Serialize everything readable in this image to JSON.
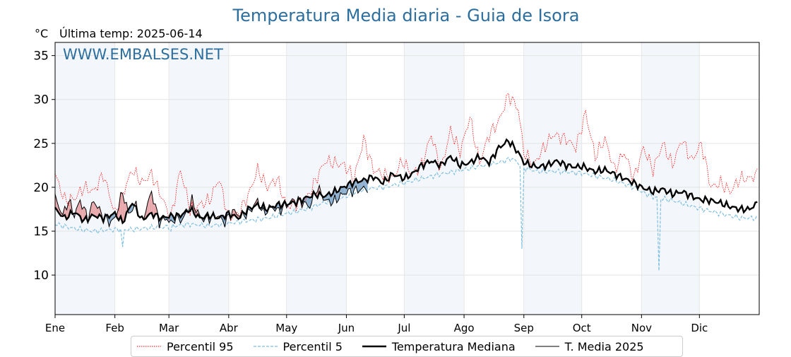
{
  "chart_data": {
    "type": "line",
    "title": "Temperatura Media diaria - Guia de Isora",
    "unit_label": "°C",
    "last_temp_label": "Última temp: 2025-06-14",
    "watermark": "WWW.EMBALSES.NET",
    "ylim": [
      5.5,
      36.5
    ],
    "yticks": [
      10,
      15,
      20,
      25,
      30,
      35
    ],
    "x_months": [
      "Ene",
      "Feb",
      "Mar",
      "Abr",
      "May",
      "Jun",
      "Jul",
      "Ago",
      "Sep",
      "Oct",
      "Nov",
      "Dic"
    ],
    "month_start_days": [
      0,
      31,
      59,
      90,
      120,
      151,
      181,
      212,
      243,
      273,
      304,
      334
    ],
    "grid": true,
    "legend_position": "bottom",
    "series": [
      {
        "name": "Percentil 95",
        "color": "#ff0000",
        "style": "dotted",
        "keypoints": [
          [
            0,
            21.5
          ],
          [
            5,
            18.5
          ],
          [
            10,
            18.7
          ],
          [
            15,
            20
          ],
          [
            20,
            19.5
          ],
          [
            25,
            21.5
          ],
          [
            31,
            17
          ],
          [
            40,
            22
          ],
          [
            45,
            20.5
          ],
          [
            50,
            21.5
          ],
          [
            60,
            16.5
          ],
          [
            65,
            22
          ],
          [
            70,
            17.5
          ],
          [
            80,
            18.5
          ],
          [
            85,
            21
          ],
          [
            90,
            16.5
          ],
          [
            95,
            17
          ],
          [
            100,
            19
          ],
          [
            105,
            22
          ],
          [
            110,
            20
          ],
          [
            115,
            21
          ],
          [
            120,
            17.8
          ],
          [
            130,
            18.5
          ],
          [
            140,
            23
          ],
          [
            150,
            22.5
          ],
          [
            155,
            21
          ],
          [
            160,
            25.5
          ],
          [
            165,
            22
          ],
          [
            175,
            21
          ],
          [
            180,
            23
          ],
          [
            185,
            21.5
          ],
          [
            190,
            22.5
          ],
          [
            195,
            26
          ],
          [
            200,
            22
          ],
          [
            205,
            26.5
          ],
          [
            210,
            24
          ],
          [
            215,
            28
          ],
          [
            220,
            22.8
          ],
          [
            225,
            26
          ],
          [
            230,
            27.5
          ],
          [
            235,
            30.5
          ],
          [
            240,
            29
          ],
          [
            243,
            24
          ],
          [
            248,
            22.5
          ],
          [
            252,
            24
          ],
          [
            258,
            26
          ],
          [
            265,
            25.5
          ],
          [
            270,
            24.5
          ],
          [
            275,
            28.5
          ],
          [
            280,
            23.5
          ],
          [
            285,
            25.5
          ],
          [
            290,
            22
          ],
          [
            295,
            24
          ],
          [
            300,
            21
          ],
          [
            305,
            24.5
          ],
          [
            310,
            22
          ],
          [
            315,
            25
          ],
          [
            320,
            22.5
          ],
          [
            325,
            25.5
          ],
          [
            330,
            23
          ],
          [
            335,
            25
          ],
          [
            340,
            20
          ],
          [
            345,
            20.5
          ],
          [
            350,
            19.5
          ],
          [
            355,
            21
          ],
          [
            360,
            21
          ],
          [
            364,
            21.5
          ]
        ],
        "noise": 0.9
      },
      {
        "name": "Percentil 5",
        "color": "#5aa9cf",
        "style": "dashed",
        "keypoints": [
          [
            0,
            15.8
          ],
          [
            10,
            15.3
          ],
          [
            20,
            15
          ],
          [
            31,
            15.2
          ],
          [
            40,
            15.2
          ],
          [
            50,
            15.4
          ],
          [
            59,
            15.5
          ],
          [
            70,
            15.8
          ],
          [
            80,
            15.6
          ],
          [
            90,
            15.9
          ],
          [
            100,
            16.2
          ],
          [
            110,
            16.5
          ],
          [
            120,
            17
          ],
          [
            130,
            17.5
          ],
          [
            140,
            18.3
          ],
          [
            151,
            19
          ],
          [
            160,
            19.8
          ],
          [
            170,
            20
          ],
          [
            181,
            20.5
          ],
          [
            190,
            21
          ],
          [
            200,
            21.5
          ],
          [
            212,
            22
          ],
          [
            220,
            22.4
          ],
          [
            230,
            22.8
          ],
          [
            237,
            23.3
          ],
          [
            243,
            22.2
          ],
          [
            250,
            21.8
          ],
          [
            260,
            21.8
          ],
          [
            273,
            21.6
          ],
          [
            280,
            21.3
          ],
          [
            290,
            20.8
          ],
          [
            300,
            20
          ],
          [
            304,
            19.5
          ],
          [
            310,
            18.9
          ],
          [
            320,
            18.5
          ],
          [
            334,
            17.6
          ],
          [
            345,
            17
          ],
          [
            355,
            16.5
          ],
          [
            364,
            16.5
          ]
        ],
        "noise": 0.35,
        "spikes": [
          [
            242,
            13.0
          ],
          [
            313,
            10.5
          ],
          [
            60,
            15.0
          ],
          [
            35,
            13.2
          ]
        ]
      },
      {
        "name": "Temperatura Mediana",
        "color": "#000000",
        "style": "solid-thick",
        "keypoints": [
          [
            0,
            17.5
          ],
          [
            5,
            16.5
          ],
          [
            10,
            17.2
          ],
          [
            15,
            16.2
          ],
          [
            20,
            16.8
          ],
          [
            25,
            16.5
          ],
          [
            31,
            17
          ],
          [
            35,
            16
          ],
          [
            40,
            18.3
          ],
          [
            45,
            16.3
          ],
          [
            50,
            17
          ],
          [
            55,
            16.5
          ],
          [
            59,
            16.7
          ],
          [
            65,
            16.8
          ],
          [
            70,
            17.5
          ],
          [
            75,
            16.5
          ],
          [
            80,
            16.8
          ],
          [
            85,
            16.5
          ],
          [
            90,
            17
          ],
          [
            95,
            16.5
          ],
          [
            100,
            17.5
          ],
          [
            105,
            18
          ],
          [
            110,
            17.5
          ],
          [
            115,
            18
          ],
          [
            120,
            18.1
          ],
          [
            125,
            18.3
          ],
          [
            130,
            18.8
          ],
          [
            135,
            19.2
          ],
          [
            140,
            19
          ],
          [
            145,
            19.5
          ],
          [
            151,
            20.2
          ],
          [
            155,
            20.6
          ],
          [
            160,
            20.8
          ],
          [
            165,
            21.2
          ],
          [
            170,
            20.5
          ],
          [
            175,
            21.5
          ],
          [
            181,
            21
          ],
          [
            185,
            21.5
          ],
          [
            190,
            22.5
          ],
          [
            195,
            23
          ],
          [
            200,
            22.5
          ],
          [
            205,
            23.5
          ],
          [
            210,
            22.5
          ],
          [
            215,
            22.8
          ],
          [
            220,
            23.5
          ],
          [
            225,
            22.8
          ],
          [
            230,
            24.5
          ],
          [
            235,
            25.3
          ],
          [
            240,
            24
          ],
          [
            243,
            22.8
          ],
          [
            250,
            22.3
          ],
          [
            255,
            22.5
          ],
          [
            260,
            23
          ],
          [
            265,
            22.5
          ],
          [
            270,
            22.3
          ],
          [
            273,
            22.4
          ],
          [
            280,
            21.8
          ],
          [
            285,
            22
          ],
          [
            290,
            21.5
          ],
          [
            295,
            21
          ],
          [
            300,
            20.5
          ],
          [
            304,
            20
          ],
          [
            310,
            19.5
          ],
          [
            315,
            19.8
          ],
          [
            320,
            19.2
          ],
          [
            325,
            19.5
          ],
          [
            330,
            19
          ],
          [
            334,
            18.6
          ],
          [
            340,
            18.5
          ],
          [
            345,
            18.2
          ],
          [
            350,
            17.8
          ],
          [
            355,
            17.5
          ],
          [
            360,
            17.5
          ],
          [
            364,
            18.2
          ]
        ],
        "noise": 0.45
      },
      {
        "name": "T. Media 2025",
        "color": "#000000",
        "style": "solid-thin",
        "keypoints": [
          [
            0,
            18.8
          ],
          [
            4,
            16.8
          ],
          [
            7,
            18.5
          ],
          [
            10,
            16.8
          ],
          [
            13,
            18.5
          ],
          [
            17,
            16.5
          ],
          [
            20,
            18.5
          ],
          [
            24,
            17
          ],
          [
            28,
            16
          ],
          [
            31,
            16.4
          ],
          [
            35,
            19.5
          ],
          [
            38,
            17
          ],
          [
            42,
            18
          ],
          [
            45,
            16
          ],
          [
            50,
            19.5
          ],
          [
            54,
            16
          ],
          [
            58,
            16.5
          ],
          [
            60,
            15.8
          ],
          [
            62,
            16.5
          ],
          [
            66,
            16.3
          ],
          [
            68,
            17
          ],
          [
            71,
            18.5
          ],
          [
            74,
            17
          ],
          [
            77,
            16.3
          ],
          [
            80,
            16.5
          ],
          [
            84,
            16.8
          ],
          [
            88,
            16
          ],
          [
            92,
            17.3
          ],
          [
            96,
            16.8
          ],
          [
            100,
            17
          ],
          [
            105,
            18.5
          ],
          [
            108,
            17
          ],
          [
            112,
            17.8
          ],
          [
            116,
            17.3
          ],
          [
            120,
            18
          ],
          [
            124,
            18.6
          ],
          [
            128,
            18.3
          ],
          [
            132,
            17.8
          ],
          [
            136,
            20
          ],
          [
            140,
            18.5
          ],
          [
            144,
            18.3
          ],
          [
            148,
            19
          ],
          [
            151,
            19.5
          ],
          [
            155,
            19.6
          ],
          [
            159,
            19.8
          ],
          [
            162,
            19.9
          ]
        ],
        "noise": 0.7
      }
    ],
    "fills": {
      "above_median": "#e8a9ad",
      "below_median": "#8fb1cf",
      "dark_below": "#2d6fa3"
    }
  }
}
